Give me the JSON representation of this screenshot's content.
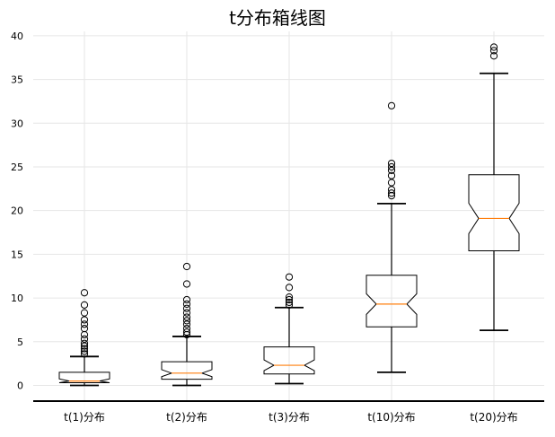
{
  "chart_data": {
    "type": "boxplot",
    "title": "t分布箱线图",
    "xlabel": "",
    "ylabel": "",
    "categories": [
      "t(1)分布",
      "t(2)分布",
      "t(3)分布",
      "t(10)分布",
      "t(20)分布"
    ],
    "ylim": [
      -1.8,
      40.5
    ],
    "yticks": [
      0,
      5,
      10,
      15,
      20,
      25,
      30,
      35,
      40
    ],
    "grid": true,
    "notched": true,
    "colors": {
      "box": "#000000",
      "median": "#ff7f0e",
      "grid": "#e6e6e6"
    },
    "boxes": [
      {
        "label": "t(1)分布",
        "whisker_low": 0.0,
        "q1": 0.3,
        "median": 0.5,
        "q3": 1.5,
        "whisker_high": 3.3,
        "outliers": [
          3.6,
          3.9,
          4.2,
          4.5,
          4.8,
          5.3,
          5.8,
          6.5,
          7.0,
          7.5,
          8.3,
          9.2,
          10.6
        ]
      },
      {
        "label": "t(2)分布",
        "whisker_low": 0.0,
        "q1": 0.7,
        "median": 1.4,
        "q3": 2.7,
        "whisker_high": 5.6,
        "outliers": [
          5.8,
          6.1,
          6.5,
          7.0,
          7.4,
          7.8,
          8.3,
          8.8,
          9.3,
          9.8,
          11.6,
          13.6
        ]
      },
      {
        "label": "t(3)分布",
        "whisker_low": 0.2,
        "q1": 1.3,
        "median": 2.3,
        "q3": 4.4,
        "whisker_high": 8.9,
        "outliers": [
          9.2,
          9.5,
          9.8,
          10.1,
          11.2,
          12.4
        ]
      },
      {
        "label": "t(10)分布",
        "whisker_low": 1.5,
        "q1": 6.7,
        "median": 9.3,
        "q3": 12.6,
        "whisker_high": 20.8,
        "outliers": [
          21.7,
          22.0,
          22.4,
          23.2,
          24.0,
          24.6,
          25.0,
          25.4,
          32.0
        ]
      },
      {
        "label": "t(20)分布",
        "whisker_low": 6.3,
        "q1": 15.4,
        "median": 19.1,
        "q3": 24.1,
        "whisker_high": 35.7,
        "outliers": [
          37.7,
          38.3,
          38.7
        ]
      }
    ]
  }
}
